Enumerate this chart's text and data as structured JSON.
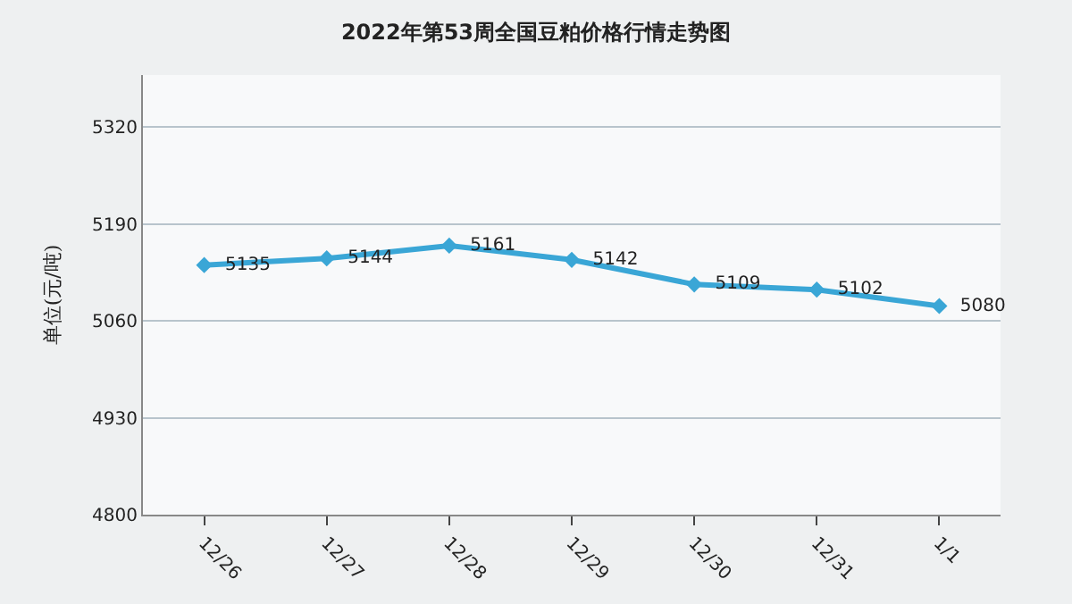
{
  "chart_data": {
    "type": "line",
    "title": "2022年第53周全国豆粕价格行情走势图",
    "ylabel": "单位(元/吨)",
    "categories": [
      "12/26",
      "12/27",
      "12/28",
      "12/29",
      "12/30",
      "12/31",
      "1/1"
    ],
    "series": [
      {
        "color": "#3aa6d6",
        "values": [
          5135,
          5144,
          5161,
          5142,
          5109,
          5102,
          5080
        ]
      }
    ],
    "ylim": [
      4800,
      5390
    ],
    "yticks": [
      4800,
      4930,
      5060,
      5190,
      5320
    ],
    "grid": "y",
    "marker": "diamond",
    "line_style": "solid",
    "data_labels": true
  }
}
